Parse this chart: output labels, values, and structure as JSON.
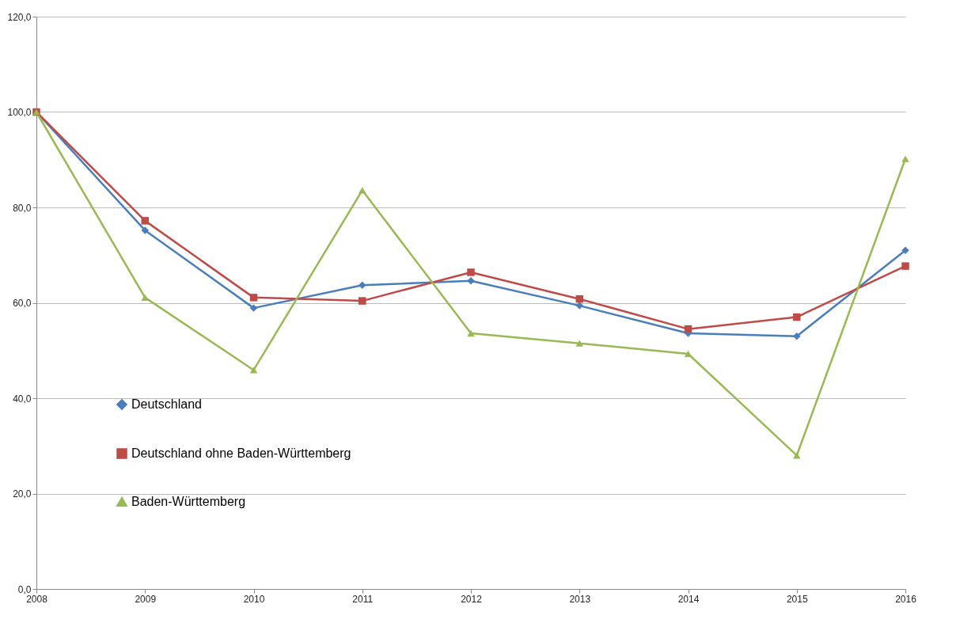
{
  "chart_data": {
    "type": "line",
    "categories": [
      "2008",
      "2009",
      "2010",
      "2011",
      "2012",
      "2013",
      "2014",
      "2015",
      "2016"
    ],
    "series": [
      {
        "name": "Deutschland",
        "color": "#4a7ebb",
        "marker": "diamond",
        "values": [
          100,
          75.2,
          58.9,
          63.7,
          64.6,
          59.4,
          53.6,
          53.0,
          71.0
        ]
      },
      {
        "name": "Deutschland ohne Baden-Württemberg",
        "color": "#be4b48",
        "marker": "square",
        "values": [
          100,
          77.2,
          61.1,
          60.4,
          66.4,
          60.8,
          54.5,
          57.0,
          67.7
        ]
      },
      {
        "name": "Baden-Württemberg",
        "color": "#98b954",
        "marker": "triangle",
        "values": [
          100,
          61.1,
          45.9,
          83.6,
          53.6,
          51.5,
          49.3,
          28.0,
          90.2
        ]
      }
    ],
    "ylim": [
      0,
      120
    ],
    "yticks": [
      {
        "value": 0,
        "label": "0,0"
      },
      {
        "value": 20,
        "label": "20,0"
      },
      {
        "value": 40,
        "label": "40,0"
      },
      {
        "value": 60,
        "label": "60,0"
      },
      {
        "value": 80,
        "label": "80,0"
      },
      {
        "value": 100,
        "label": "100,0"
      },
      {
        "value": 120,
        "label": "120,0"
      }
    ],
    "grid": "y",
    "legend": "bottom left",
    "line_style": "solid"
  }
}
